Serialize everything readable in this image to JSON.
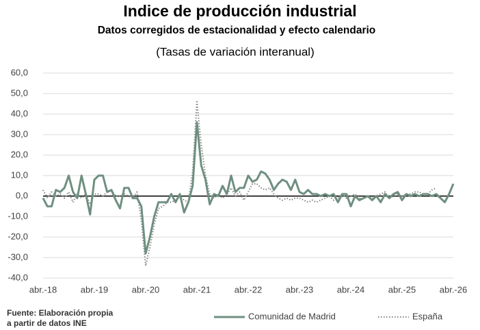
{
  "chart_data": {
    "type": "line",
    "title": "Indice de producción industrial",
    "subtitle": "Datos corregidos de estacionalidad y efecto calendario",
    "note": "(Tasas de variación interanual)",
    "source": [
      "Fuente: Elaboración propia",
      "a partir de datos INE"
    ],
    "categories": [
      "abr.-18",
      null,
      null,
      null,
      null,
      null,
      null,
      null,
      null,
      null,
      null,
      null,
      "abr.-19",
      null,
      null,
      null,
      null,
      null,
      null,
      null,
      null,
      null,
      null,
      null,
      "abr.-20",
      null,
      null,
      null,
      null,
      null,
      null,
      null,
      null,
      null,
      null,
      null,
      "abr.-21",
      null,
      null,
      null,
      null,
      null,
      null,
      null,
      null,
      null,
      null,
      null,
      "abr.-22",
      null,
      null,
      null,
      null,
      null,
      null,
      null,
      null,
      null,
      null,
      null,
      "abr.-23",
      null,
      null,
      null,
      null,
      null,
      null,
      null,
      null,
      null,
      null,
      null,
      "abr.-24",
      null,
      null,
      null,
      null,
      null,
      null,
      null,
      null,
      null,
      null,
      null,
      "abr.-25",
      null,
      null,
      null,
      null,
      null,
      null,
      null,
      null,
      null,
      null,
      null,
      "abr.-26"
    ],
    "series": [
      {
        "name": "Comunidad de Madrid",
        "color": "#6e8f80",
        "dash": false,
        "values": [
          -1,
          -5,
          -5,
          3,
          2,
          4,
          10,
          2,
          -1,
          10,
          1,
          -9,
          8,
          10,
          10,
          2,
          3,
          -2,
          -6,
          4,
          4,
          -1,
          -1,
          -5,
          -28,
          -20,
          -10,
          -3,
          -3,
          -3,
          1,
          -3,
          1,
          -8,
          -3,
          5,
          36,
          15,
          8,
          -4,
          1,
          0,
          5,
          1,
          10,
          2,
          4,
          4,
          10,
          7,
          8,
          12,
          11,
          8,
          3,
          6,
          8,
          7,
          3,
          8,
          2,
          1,
          3,
          1,
          1,
          0,
          1,
          0,
          1,
          -3,
          1,
          1,
          -5,
          0,
          -2,
          -1,
          0,
          -2,
          0,
          -3,
          1,
          -1,
          1,
          2,
          -2,
          1,
          0,
          1,
          0,
          1,
          1,
          0,
          1,
          -1,
          -3,
          1,
          6
        ]
      },
      {
        "name": "España",
        "color": "#8a8a8a",
        "dash": true,
        "values": [
          3,
          -1,
          2,
          0,
          1,
          -1,
          2,
          -3,
          1,
          -1,
          1,
          -4,
          1,
          1,
          0,
          2,
          3,
          0,
          0,
          1,
          0,
          -1,
          2,
          -12,
          -34,
          -25,
          -14,
          -6,
          -5,
          -3,
          -3,
          -2,
          0,
          -2,
          -3,
          12,
          46,
          25,
          10,
          1,
          -1,
          1,
          -1,
          1,
          4,
          0,
          2,
          -2,
          2,
          6,
          6,
          4,
          3,
          4,
          1,
          -1,
          -2,
          -1,
          -2,
          -1,
          -1,
          -2,
          -3,
          -2,
          -3,
          -2,
          -1,
          0,
          -2,
          -1,
          1,
          -1,
          0,
          1,
          -1,
          -1,
          0,
          -1,
          0,
          1,
          2,
          -1,
          0,
          1,
          0,
          1,
          1,
          2,
          2,
          1,
          1,
          3,
          4,
          null,
          null,
          null,
          null
        ]
      }
    ],
    "ylim": [
      -40,
      60
    ],
    "yticks": [
      {
        "value": -40,
        "label": "-40,0"
      },
      {
        "value": -30,
        "label": "-30,0"
      },
      {
        "value": -20,
        "label": "-20,0"
      },
      {
        "value": -10,
        "label": "-10,0"
      },
      {
        "value": 0,
        "label": "0,0"
      },
      {
        "value": 10,
        "label": "10,0"
      },
      {
        "value": 20,
        "label": "20,0"
      },
      {
        "value": 30,
        "label": "30,0"
      },
      {
        "value": 40,
        "label": "40,0"
      },
      {
        "value": 50,
        "label": "50,0"
      },
      {
        "value": 60,
        "label": "60,0"
      }
    ],
    "grid": true
  }
}
